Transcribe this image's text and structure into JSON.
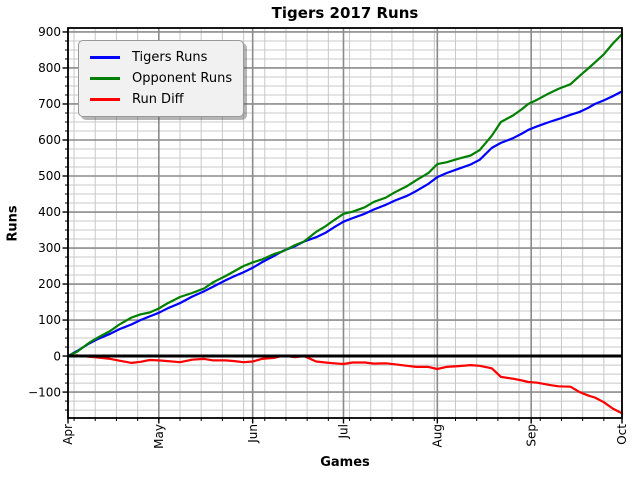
{
  "chart_data": {
    "type": "line",
    "title": "Tigers 2017 Runs",
    "xlabel": "Games",
    "ylabel": "Runs",
    "xlim": [
      0,
      183
    ],
    "ylim": [
      -172,
      911
    ],
    "grid": {
      "major": true,
      "minor": true
    },
    "legend": {
      "position": "upper left"
    },
    "zero_line": true,
    "x_ticks": [
      {
        "d": 0,
        "label": "Apr"
      },
      {
        "d": 30,
        "label": "May"
      },
      {
        "d": 61,
        "label": "Jun"
      },
      {
        "d": 91,
        "label": "Jul"
      },
      {
        "d": 122,
        "label": "Aug"
      },
      {
        "d": 153,
        "label": "Sep"
      },
      {
        "d": 183,
        "label": "Oct"
      }
    ],
    "y_ticks": [
      {
        "v": -100,
        "label": "−100"
      },
      {
        "v": 0,
        "label": "0"
      },
      {
        "v": 100,
        "label": "100"
      },
      {
        "v": 200,
        "label": "200"
      },
      {
        "v": 300,
        "label": "300"
      },
      {
        "v": 400,
        "label": "400"
      },
      {
        "v": 500,
        "label": "500"
      },
      {
        "v": 600,
        "label": "600"
      },
      {
        "v": 700,
        "label": "700"
      },
      {
        "v": 800,
        "label": "800"
      },
      {
        "v": 900,
        "label": "900"
      }
    ],
    "x_minor_step_days": 7,
    "y_minor_step": 25,
    "days": [
      0,
      3,
      7,
      10,
      14,
      17,
      21,
      24,
      27,
      30,
      33,
      37,
      41,
      45,
      48,
      52,
      55,
      58,
      61,
      64,
      68,
      71,
      75,
      78,
      82,
      85,
      88,
      91,
      94,
      98,
      101,
      105,
      108,
      112,
      115,
      119,
      122,
      125,
      129,
      133,
      136,
      140,
      143,
      147,
      150,
      152,
      155,
      159,
      162,
      166,
      169,
      172,
      174,
      177,
      180,
      183
    ],
    "series": [
      {
        "name": "Tigers Runs",
        "color": "#0000ff",
        "values": [
          0,
          14,
          35,
          48,
          62,
          75,
          88,
          100,
          110,
          120,
          133,
          147,
          165,
          180,
          193,
          210,
          222,
          233,
          245,
          260,
          278,
          292,
          305,
          318,
          330,
          342,
          358,
          373,
          383,
          395,
          407,
          420,
          432,
          445,
          458,
          478,
          497,
          508,
          520,
          532,
          545,
          578,
          592,
          605,
          618,
          628,
          638,
          650,
          658,
          670,
          678,
          690,
          700,
          710,
          722,
          735
        ]
      },
      {
        "name": "Opponent Runs",
        "color": "#008000",
        "values": [
          0,
          12,
          37,
          52,
          70,
          88,
          107,
          116,
          121,
          132,
          147,
          164,
          175,
          188,
          205,
          222,
          236,
          250,
          260,
          268,
          283,
          291,
          308,
          318,
          345,
          360,
          378,
          395,
          401,
          413,
          428,
          440,
          455,
          472,
          488,
          508,
          533,
          538,
          548,
          557,
          572,
          612,
          650,
          668,
          686,
          700,
          712,
          730,
          742,
          755,
          778,
          800,
          815,
          838,
          868,
          894
        ]
      },
      {
        "name": "Run Diff",
        "color": "#ff0000",
        "values": [
          0,
          2,
          -2,
          -4,
          -8,
          -13,
          -19,
          -16,
          -11,
          -12,
          -14,
          -17,
          -10,
          -8,
          -12,
          -12,
          -14,
          -17,
          -15,
          -8,
          -5,
          1,
          -3,
          0,
          -15,
          -18,
          -20,
          -22,
          -18,
          -18,
          -21,
          -20,
          -23,
          -27,
          -30,
          -30,
          -36,
          -30,
          -28,
          -25,
          -27,
          -34,
          -58,
          -63,
          -68,
          -72,
          -74,
          -80,
          -84,
          -85,
          -100,
          -110,
          -115,
          -128,
          -146,
          -159
        ]
      }
    ],
    "final_totals": {
      "tigers_runs": 735,
      "opponent_runs": 894,
      "run_diff": -159
    }
  }
}
